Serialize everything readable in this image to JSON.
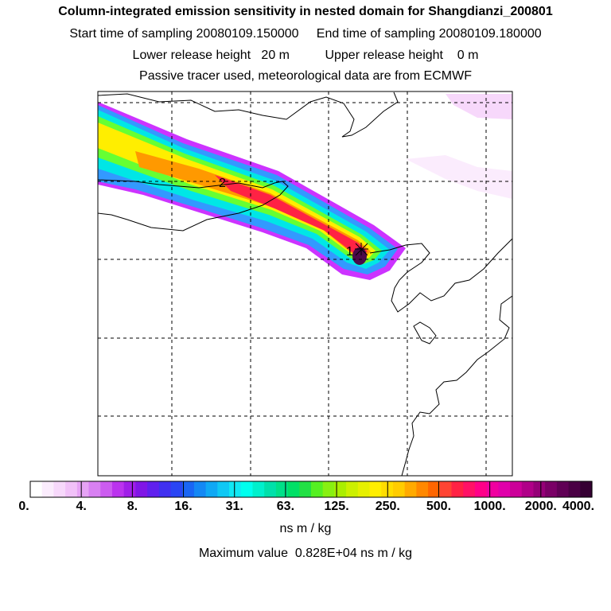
{
  "header": {
    "title": "Column-integrated emission sensitivity in nested domain for Shangdianzi_200801",
    "sampling_line": "Start time of sampling 20080109.150000     End time of sampling 20080109.180000",
    "release_line": "Lower release height   20 m          Upper release height    0 m",
    "tracer_line": "Passive tracer used, meteorological data are from ECMWF"
  },
  "map": {
    "release_markers": [
      {
        "label": "1"
      },
      {
        "label": "2"
      }
    ],
    "plume_colors": {
      "outer": "#cc33ff",
      "blue": "#3399ff",
      "cyan": "#00e6e6",
      "green": "#66ff33",
      "yellow": "#ffee00",
      "orange": "#ff9900",
      "red": "#ff2244",
      "core": "#4a0a4a"
    }
  },
  "legend": {
    "tick_labels": [
      "0.",
      "4.",
      "8.",
      "16.",
      "31.",
      "63.",
      "125.",
      "250.",
      "500.",
      "1000.",
      "2000.",
      "4000."
    ],
    "colors": [
      "#ffffff",
      "#fbecfd",
      "#f7d8fb",
      "#f1c1f8",
      "#e6a3f5",
      "#d880f2",
      "#cc5cf0",
      "#bb33ee",
      "#a01ee8",
      "#8016e6",
      "#6020ee",
      "#4030f0",
      "#2a45f4",
      "#1a66f4",
      "#1488f4",
      "#10a8f4",
      "#10c8f4",
      "#10e8f4",
      "#00ffee",
      "#00f0cc",
      "#00e0aa",
      "#00e088",
      "#00e066",
      "#22e044",
      "#55f022",
      "#88f011",
      "#aaee00",
      "#ccf000",
      "#e6f000",
      "#ffee00",
      "#ffdd00",
      "#ffcc00",
      "#ffaa00",
      "#ff8800",
      "#ff6600",
      "#ff4433",
      "#ff2244",
      "#ff1166",
      "#ff0088",
      "#f000a0",
      "#e000aa",
      "#cc0099",
      "#b00088",
      "#950077",
      "#7a0066",
      "#600055",
      "#4a0044",
      "#350033"
    ],
    "units": "ns m / kg",
    "max_value_text": "Maximum value  0.828E+04 ns m / kg"
  }
}
